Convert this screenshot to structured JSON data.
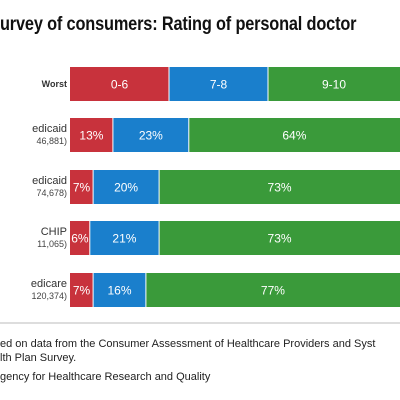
{
  "title": "urvey of consumers: Rating of personal doctor",
  "chart_data": {
    "type": "bar",
    "orientation": "horizontal",
    "stacked": true,
    "unit": "percent",
    "xlim": [
      0,
      100
    ],
    "segment_labels": [
      "0-6",
      "7-8",
      "9-10"
    ],
    "colors": [
      "#c8323c",
      "#1a7fcc",
      "#3a9a3a"
    ],
    "rows": [
      {
        "label": "Worst",
        "sublabel": "",
        "legend_row": true,
        "values": [
          30,
          30,
          40
        ],
        "value_labels": [
          "0-6",
          "7-8",
          "9-10"
        ]
      },
      {
        "label": "edicaid",
        "sublabel": "46,881)",
        "values": [
          13,
          23,
          64
        ],
        "value_labels": [
          "13%",
          "23%",
          "64%"
        ]
      },
      {
        "label": "edicaid",
        "sublabel": "74,678)",
        "values": [
          7,
          20,
          73
        ],
        "value_labels": [
          "7%",
          "20%",
          "73%"
        ]
      },
      {
        "label": "CHIP",
        "sublabel": "11,065)",
        "values": [
          6,
          21,
          73
        ],
        "value_labels": [
          "6%",
          "21%",
          "73%"
        ]
      },
      {
        "label": "edicare",
        "sublabel": "120,374)",
        "values": [
          7,
          16,
          77
        ],
        "value_labels": [
          "7%",
          "16%",
          "77%"
        ]
      }
    ]
  },
  "footnote": {
    "line1": "ed on data from the Consumer Assessment of Healthcare Providers and Syst",
    "line2": "lth Plan Survey.",
    "line3": "gency for Healthcare Research and Quality"
  }
}
